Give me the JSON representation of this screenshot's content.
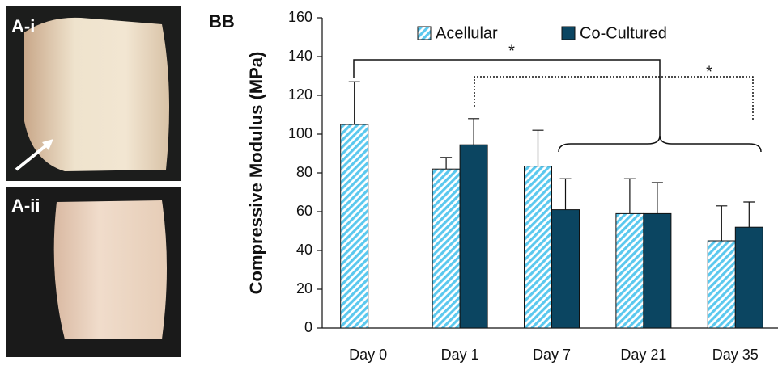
{
  "panel_labels": [
    "A-i",
    "A-ii",
    "BB"
  ],
  "chart_data": {
    "type": "bar",
    "y_label": "Compressive Modulus (MPa)",
    "categories": [
      "Day 0",
      "Day 1",
      "Day 7",
      "Day 21",
      "Day 35"
    ],
    "series": [
      {
        "name": "Acellular",
        "color": "#5bc8ee",
        "hatch": true,
        "values": [
          105,
          82,
          83.5,
          59,
          45
        ],
        "errors": [
          22,
          6,
          18.5,
          18,
          18
        ]
      },
      {
        "name": "Co-Cultured",
        "color": "#0b4561",
        "hatch": false,
        "values": [
          null,
          94.5,
          61,
          59,
          52
        ],
        "errors": [
          null,
          13.5,
          16,
          16,
          13
        ]
      }
    ],
    "ylim": [
      0,
      160
    ],
    "yticks": [
      0,
      20,
      40,
      60,
      80,
      100,
      120,
      140,
      160
    ],
    "annotations": [
      "*",
      "*"
    ]
  }
}
